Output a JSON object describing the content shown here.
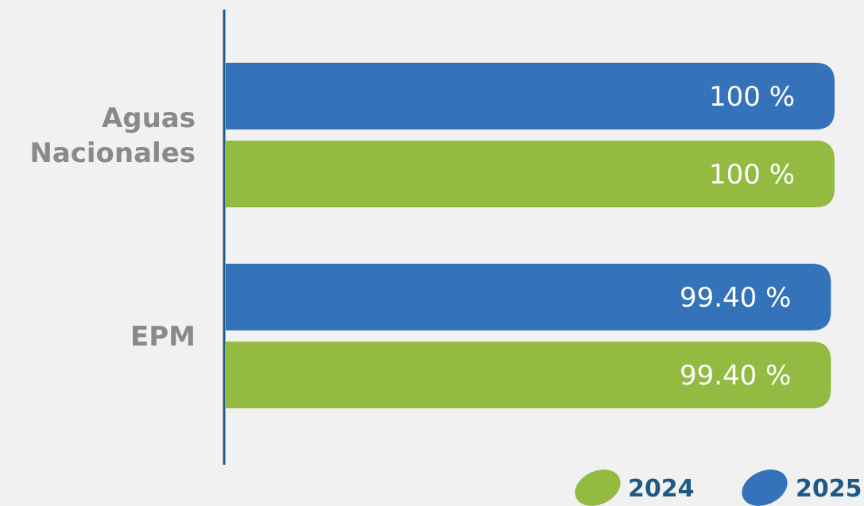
{
  "chart_data": {
    "type": "bar",
    "orientation": "horizontal",
    "categories": [
      [
        "Aguas",
        "Nacionales"
      ],
      [
        "EPM"
      ]
    ],
    "series": [
      {
        "name": "2025",
        "color": "#3473ba",
        "values": [
          100,
          99.4
        ],
        "labels": [
          "100 %",
          "99.40 %"
        ]
      },
      {
        "name": "2024",
        "color": "#93bb42",
        "values": [
          100,
          99.4
        ],
        "labels": [
          "100 %",
          "99.40 %"
        ]
      }
    ],
    "xlim": [
      0,
      100
    ],
    "grid": false,
    "legend": {
      "placement": "bottom-right",
      "order": [
        "2024",
        "2025"
      ]
    }
  }
}
